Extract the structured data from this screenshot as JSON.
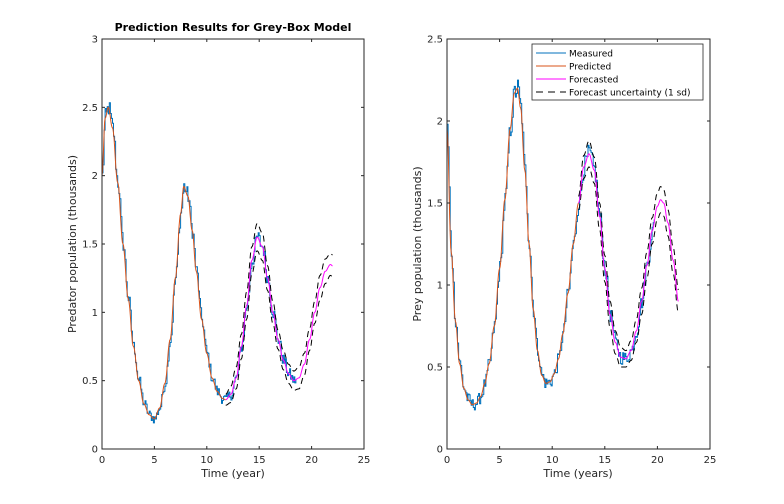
{
  "chart_data": [
    {
      "type": "line",
      "title": "Prediction Results for Grey-Box Model",
      "xlabel": "Time (year)",
      "ylabel": "Predator population (thousands)",
      "xlim": [
        0,
        25
      ],
      "ylim": [
        0,
        3
      ],
      "xticks": [
        "0",
        "5",
        "10",
        "15",
        "20",
        "25"
      ],
      "yticks": [
        "0",
        "0.5",
        "1",
        "1.5",
        "2",
        "2.5",
        "3"
      ],
      "grid": false,
      "series": [
        {
          "name": "Predicted",
          "color": "#D95319",
          "x": [
            0,
            0.3,
            0.6,
            1,
            1.5,
            2,
            2.5,
            3,
            3.5,
            4,
            4.5,
            5,
            5.5,
            6,
            6.5,
            7,
            7.5,
            7.8,
            8.2,
            8.6,
            9,
            9.5,
            10,
            10.5,
            11,
            11.5,
            11.8
          ],
          "y": [
            2.0,
            2.42,
            2.5,
            2.35,
            1.95,
            1.5,
            1.1,
            0.75,
            0.5,
            0.33,
            0.25,
            0.22,
            0.3,
            0.48,
            0.8,
            1.25,
            1.72,
            1.92,
            1.85,
            1.6,
            1.3,
            0.95,
            0.7,
            0.52,
            0.42,
            0.37,
            0.36
          ]
        },
        {
          "name": "Forecasted",
          "color": "#FF00FF",
          "x": [
            11.8,
            12.3,
            12.8,
            13.3,
            13.8,
            14.3,
            14.8,
            15.3,
            15.8,
            16.3,
            16.8,
            17.3,
            17.8,
            18.3,
            18.8,
            19.3,
            19.8,
            20.3,
            20.8,
            21.3,
            21.8,
            22
          ],
          "y": [
            0.36,
            0.4,
            0.52,
            0.75,
            1.05,
            1.38,
            1.55,
            1.48,
            1.25,
            1.0,
            0.8,
            0.65,
            0.55,
            0.5,
            0.52,
            0.62,
            0.8,
            1.0,
            1.18,
            1.3,
            1.35,
            1.34
          ]
        },
        {
          "name": "Forecast uncertainty (1 sd)",
          "color": "#000000",
          "style": "dashed",
          "x": [
            11.8,
            12.3,
            12.8,
            13.3,
            13.8,
            14.3,
            14.8,
            15.3,
            15.8,
            16.3,
            16.8,
            17.3,
            17.8,
            18.3,
            18.8,
            19.3,
            19.8,
            20.3,
            20.8,
            21.3,
            21.8,
            22
          ],
          "y_upper": [
            0.4,
            0.46,
            0.6,
            0.84,
            1.15,
            1.48,
            1.65,
            1.58,
            1.34,
            1.08,
            0.87,
            0.72,
            0.62,
            0.57,
            0.6,
            0.7,
            0.88,
            1.08,
            1.27,
            1.39,
            1.43,
            1.42
          ],
          "y_lower": [
            0.32,
            0.34,
            0.44,
            0.66,
            0.95,
            1.28,
            1.45,
            1.38,
            1.16,
            0.92,
            0.73,
            0.58,
            0.48,
            0.43,
            0.44,
            0.54,
            0.72,
            0.92,
            1.09,
            1.21,
            1.27,
            1.26
          ]
        },
        {
          "name": "Measured",
          "color": "#0072BD",
          "note": "noisy measurements following predicted curve until ~t=18.5",
          "x_end": 18.5
        }
      ]
    },
    {
      "type": "line",
      "title": "",
      "xlabel": "Time (years)",
      "ylabel": "Prey population (thousands)",
      "xlim": [
        0,
        25
      ],
      "ylim": [
        0,
        2.5
      ],
      "xticks": [
        "0",
        "5",
        "10",
        "15",
        "20",
        "25"
      ],
      "yticks": [
        "0",
        "0.5",
        "1",
        "1.5",
        "2",
        "2.5"
      ],
      "grid": false,
      "legend": {
        "placement": "top-right",
        "entries": [
          "Measured",
          "Predicted",
          "Forecasted",
          "Forecast uncertainty (1 sd)"
        ]
      },
      "series": [
        {
          "name": "Predicted",
          "color": "#D95319",
          "x": [
            0,
            0.4,
            0.8,
            1.2,
            1.6,
            2.0,
            2.4,
            2.8,
            3.2,
            3.6,
            4.0,
            4.5,
            5.0,
            5.5,
            6.0,
            6.4,
            6.7,
            7.0,
            7.4,
            7.8,
            8.2,
            8.6,
            9.0,
            9.4,
            9.8,
            10.2,
            10.6,
            11.0,
            11.5,
            12.0,
            12.5
          ],
          "y": [
            1.95,
            1.2,
            0.78,
            0.52,
            0.37,
            0.3,
            0.27,
            0.28,
            0.32,
            0.4,
            0.52,
            0.75,
            1.1,
            1.52,
            1.95,
            2.17,
            2.2,
            2.08,
            1.7,
            1.25,
            0.85,
            0.6,
            0.45,
            0.4,
            0.41,
            0.46,
            0.55,
            0.7,
            0.95,
            1.25,
            1.5
          ]
        },
        {
          "name": "Forecasted",
          "color": "#FF00FF",
          "x": [
            12.5,
            13.0,
            13.5,
            14.0,
            14.5,
            15.0,
            15.5,
            16.0,
            16.5,
            17.0,
            17.5,
            18.0,
            18.5,
            19.0,
            19.5,
            20.0,
            20.3,
            20.6,
            21.0,
            21.5,
            22.0
          ],
          "y": [
            1.5,
            1.72,
            1.8,
            1.7,
            1.42,
            1.1,
            0.82,
            0.65,
            0.56,
            0.55,
            0.6,
            0.72,
            0.9,
            1.12,
            1.33,
            1.48,
            1.52,
            1.5,
            1.38,
            1.15,
            0.9
          ]
        },
        {
          "name": "Forecast uncertainty (1 sd)",
          "color": "#000000",
          "style": "dashed",
          "x": [
            12.5,
            13.0,
            13.5,
            14.0,
            14.5,
            15.0,
            15.5,
            16.0,
            16.5,
            17.0,
            17.5,
            18.0,
            18.5,
            19.0,
            19.5,
            20.0,
            20.3,
            20.6,
            21.0,
            21.5,
            22.0
          ],
          "y_upper": [
            1.54,
            1.79,
            1.88,
            1.78,
            1.5,
            1.18,
            0.9,
            0.72,
            0.62,
            0.6,
            0.66,
            0.79,
            0.98,
            1.2,
            1.41,
            1.56,
            1.6,
            1.58,
            1.46,
            1.23,
            0.97
          ],
          "y_lower": [
            1.46,
            1.65,
            1.72,
            1.62,
            1.34,
            1.02,
            0.74,
            0.58,
            0.5,
            0.5,
            0.54,
            0.65,
            0.82,
            1.04,
            1.25,
            1.4,
            1.44,
            1.42,
            1.3,
            1.07,
            0.83
          ]
        },
        {
          "name": "Measured",
          "color": "#0072BD",
          "note": "noisy measurements following predicted curve until ~t=19.8",
          "x_end": 19.8
        }
      ]
    }
  ]
}
